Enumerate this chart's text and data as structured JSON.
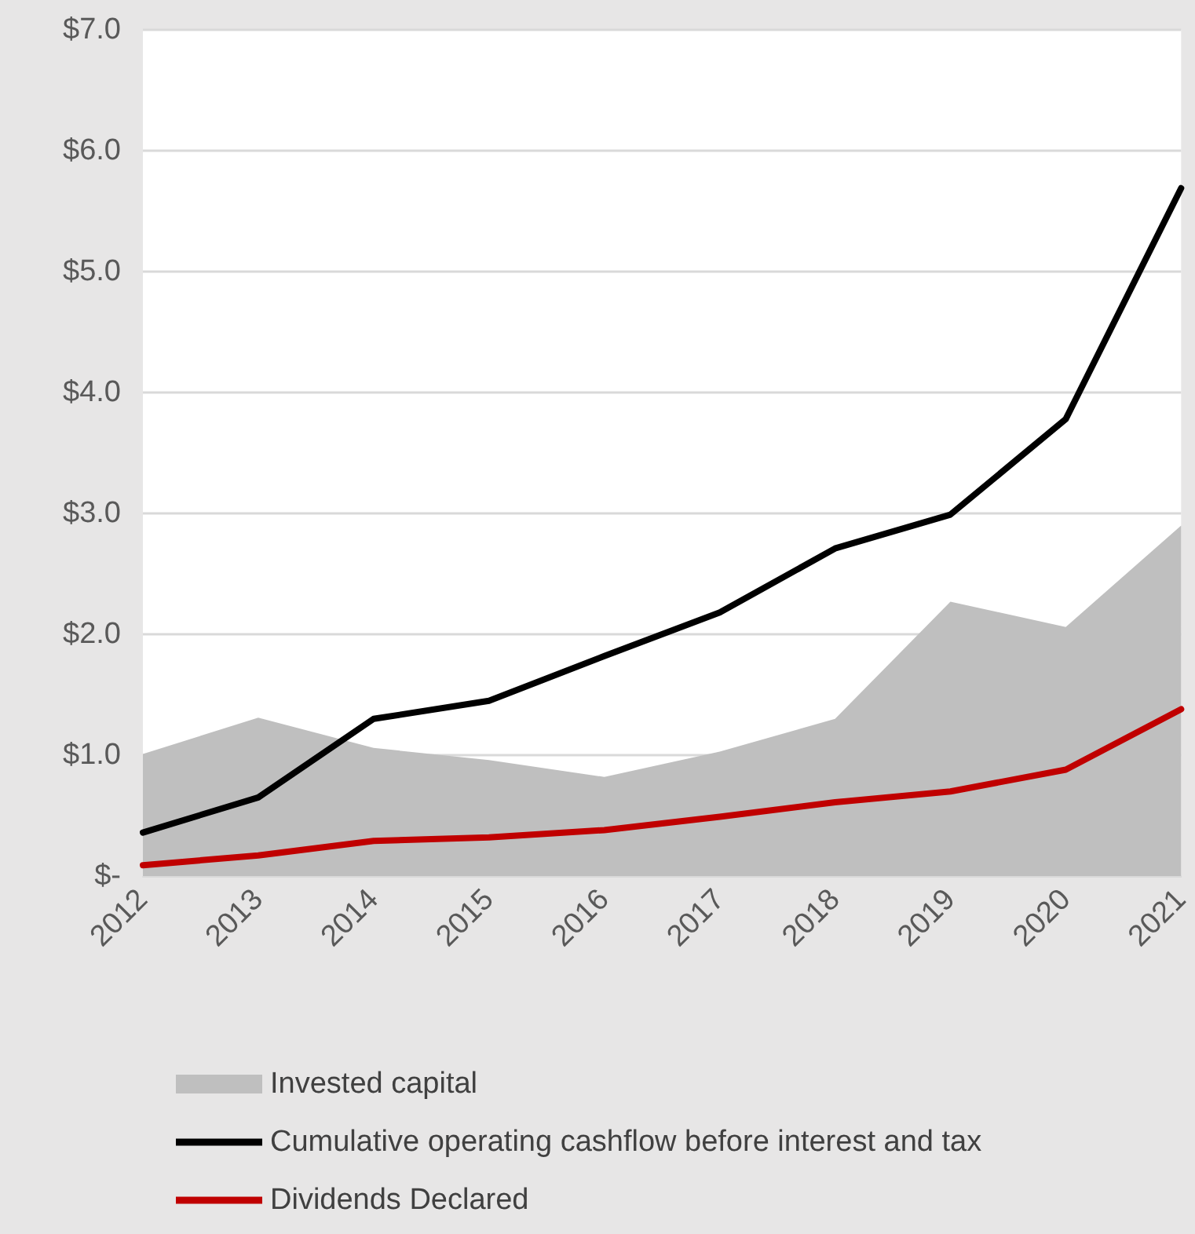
{
  "chart_data": {
    "type": "line",
    "categories": [
      "2012",
      "2013",
      "2014",
      "2015",
      "2016",
      "2017",
      "2018",
      "2019",
      "2020",
      "2021"
    ],
    "series": [
      {
        "name": "Invested capital",
        "type": "area",
        "color": "#bfbfbf",
        "values": [
          1.01,
          1.31,
          1.06,
          0.96,
          0.82,
          1.03,
          1.3,
          2.27,
          2.06,
          2.9
        ]
      },
      {
        "name": "Cumulative operating cashflow before interest and tax",
        "color": "#000000",
        "values": [
          0.36,
          0.65,
          1.3,
          1.45,
          1.82,
          2.18,
          2.71,
          2.99,
          3.78,
          5.69
        ]
      },
      {
        "name": "Dividends Declared",
        "color": "#c00000",
        "values": [
          0.09,
          0.17,
          0.29,
          0.32,
          0.38,
          0.49,
          0.61,
          0.7,
          0.88,
          1.38
        ]
      }
    ],
    "ylim": [
      0,
      7
    ],
    "yticks": [
      {
        "value": 0,
        "label": "$-"
      },
      {
        "value": 1,
        "label": "$1.0"
      },
      {
        "value": 2,
        "label": "$2.0"
      },
      {
        "value": 3,
        "label": "$3.0"
      },
      {
        "value": 4,
        "label": "$4.0"
      },
      {
        "value": 5,
        "label": "$5.0"
      },
      {
        "value": 6,
        "label": "$6.0"
      },
      {
        "value": 7,
        "label": "$7.0"
      }
    ],
    "grid": "y",
    "legend": "bottom",
    "marker": "none",
    "line_style": "solid"
  }
}
